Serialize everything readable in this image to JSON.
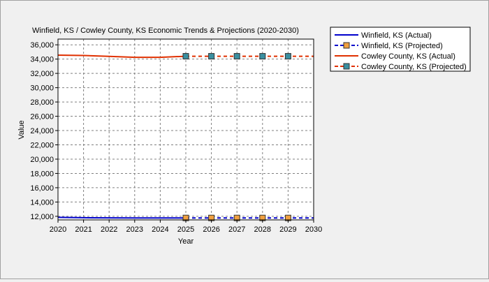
{
  "chart_data": {
    "type": "line",
    "title": "Winfield, KS / Cowley County, KS Economic Trends & Projections (2020-2030)",
    "xlabel": "Year",
    "ylabel": "Value",
    "xlim": [
      2020,
      2030
    ],
    "ylim": [
      11500,
      36800
    ],
    "x_ticks": [
      2020,
      2021,
      2022,
      2023,
      2024,
      2025,
      2026,
      2027,
      2028,
      2029,
      2030
    ],
    "y_ticks": [
      12000,
      14000,
      16000,
      18000,
      20000,
      22000,
      24000,
      26000,
      28000,
      30000,
      32000,
      34000,
      36000
    ],
    "y_tick_labels": [
      "12,000",
      "14,000",
      "16,000",
      "18,000",
      "20,000",
      "22,000",
      "24,000",
      "26,000",
      "28,000",
      "30,000",
      "32,000",
      "34,000",
      "36,000"
    ],
    "grid": true,
    "legend_position": "outside-right",
    "series": [
      {
        "name": "Winfield, KS (Actual)",
        "style": "solid",
        "marker": "none",
        "color": "#0000cc",
        "marker_color": "",
        "x": [
          2020,
          2021,
          2022,
          2023,
          2024,
          2025
        ],
        "y": [
          11850,
          11800,
          11780,
          11760,
          11760,
          11770
        ]
      },
      {
        "name": "Winfield, KS (Projected)",
        "style": "dashed",
        "marker": "square",
        "color": "#0000cc",
        "marker_color": "#f0a040",
        "x": [
          2025,
          2026,
          2027,
          2028,
          2029,
          2030
        ],
        "y": [
          11770,
          11770,
          11770,
          11770,
          11770,
          11770
        ]
      },
      {
        "name": "Cowley County, KS (Actual)",
        "style": "solid",
        "marker": "none",
        "color": "#e03000",
        "marker_color": "",
        "x": [
          2020,
          2021,
          2022,
          2023,
          2024,
          2025
        ],
        "y": [
          34550,
          34500,
          34380,
          34250,
          34250,
          34400
        ]
      },
      {
        "name": "Cowley County, KS (Projected)",
        "style": "dashed",
        "marker": "square",
        "color": "#e03000",
        "marker_color": "#3a8fa0",
        "x": [
          2025,
          2026,
          2027,
          2028,
          2029,
          2030
        ],
        "y": [
          34400,
          34400,
          34400,
          34400,
          34400,
          34400
        ]
      }
    ]
  }
}
